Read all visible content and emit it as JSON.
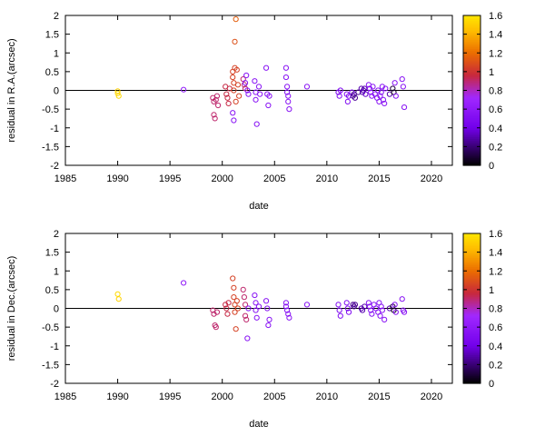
{
  "chart_data": [
    {
      "type": "scatter",
      "title": "",
      "xlabel": "date",
      "ylabel": "residual in R.A.(arcsec)",
      "xlim": [
        1985,
        2022
      ],
      "ylim": [
        -2,
        2
      ],
      "xticks": [
        "1985",
        "1990",
        "1995",
        "2000",
        "2005",
        "2010",
        "2015",
        "2020"
      ],
      "yticks": [
        "2",
        "1.5",
        "1",
        "0.5",
        "0",
        "-0.5",
        "-1",
        "-1.5",
        "-2"
      ],
      "zero_line": true,
      "marker": "open-circle",
      "colorbar": {
        "palette": "black-purple-red-orange-yellow",
        "range": [
          0,
          1.6
        ],
        "ticks": [
          "1.6",
          "1.4",
          "1.2",
          "1",
          "0.8",
          "0.6",
          "0.4",
          "0.2",
          "0"
        ]
      },
      "points": [
        {
          "x": 1990.0,
          "y": -0.08,
          "c": 1.55
        },
        {
          "x": 1990.1,
          "y": -0.15,
          "c": 1.55
        },
        {
          "x": 1990.0,
          "y": -0.02,
          "c": 1.52
        },
        {
          "x": 1996.3,
          "y": 0.02,
          "c": 0.6
        },
        {
          "x": 1999.1,
          "y": -0.2,
          "c": 0.9
        },
        {
          "x": 1999.2,
          "y": -0.3,
          "c": 0.9
        },
        {
          "x": 1999.2,
          "y": -0.65,
          "c": 0.9
        },
        {
          "x": 1999.3,
          "y": -0.75,
          "c": 0.9
        },
        {
          "x": 1999.4,
          "y": -0.25,
          "c": 0.9
        },
        {
          "x": 1999.5,
          "y": -0.15,
          "c": 0.9
        },
        {
          "x": 1999.6,
          "y": -0.4,
          "c": 0.9
        },
        {
          "x": 2000.3,
          "y": 0.1,
          "c": 0.95
        },
        {
          "x": 2000.4,
          "y": -0.1,
          "c": 0.95
        },
        {
          "x": 2000.5,
          "y": -0.2,
          "c": 0.95
        },
        {
          "x": 2000.6,
          "y": -0.35,
          "c": 0.95
        },
        {
          "x": 2000.7,
          "y": 0.05,
          "c": 0.95
        },
        {
          "x": 2001.0,
          "y": 0.5,
          "c": 1.05
        },
        {
          "x": 2001.0,
          "y": 0.35,
          "c": 1.05
        },
        {
          "x": 2001.1,
          "y": 0.2,
          "c": 1.05
        },
        {
          "x": 2001.1,
          "y": 0.0,
          "c": 1.05
        },
        {
          "x": 2001.2,
          "y": 0.6,
          "c": 1.05
        },
        {
          "x": 2001.2,
          "y": 1.3,
          "c": 1.1
        },
        {
          "x": 2001.3,
          "y": 1.9,
          "c": 1.15
        },
        {
          "x": 2001.3,
          "y": -0.3,
          "c": 1.05
        },
        {
          "x": 2001.4,
          "y": 0.55,
          "c": 1.05
        },
        {
          "x": 2001.5,
          "y": 0.15,
          "c": 1.05
        },
        {
          "x": 2001.6,
          "y": -0.15,
          "c": 1.05
        },
        {
          "x": 2001.0,
          "y": -0.6,
          "c": 0.55
        },
        {
          "x": 2001.1,
          "y": -0.8,
          "c": 0.55
        },
        {
          "x": 2002.0,
          "y": 0.3,
          "c": 0.9
        },
        {
          "x": 2002.1,
          "y": 0.15,
          "c": 0.9
        },
        {
          "x": 2002.2,
          "y": 0.05,
          "c": 0.9
        },
        {
          "x": 2002.2,
          "y": 0.2,
          "c": 0.55
        },
        {
          "x": 2002.3,
          "y": 0.4,
          "c": 0.55
        },
        {
          "x": 2002.4,
          "y": 0.0,
          "c": 0.55
        },
        {
          "x": 2002.5,
          "y": -0.1,
          "c": 0.55
        },
        {
          "x": 2003.1,
          "y": 0.25,
          "c": 0.55
        },
        {
          "x": 2003.2,
          "y": -0.05,
          "c": 0.55
        },
        {
          "x": 2003.2,
          "y": -0.25,
          "c": 0.55
        },
        {
          "x": 2003.3,
          "y": -0.9,
          "c": 0.55
        },
        {
          "x": 2003.5,
          "y": 0.1,
          "c": 0.55
        },
        {
          "x": 2003.6,
          "y": -0.1,
          "c": 0.55
        },
        {
          "x": 2004.2,
          "y": 0.6,
          "c": 0.55
        },
        {
          "x": 2004.3,
          "y": -0.1,
          "c": 0.55
        },
        {
          "x": 2004.4,
          "y": -0.4,
          "c": 0.55
        },
        {
          "x": 2004.5,
          "y": -0.15,
          "c": 0.55
        },
        {
          "x": 2006.1,
          "y": 0.6,
          "c": 0.55
        },
        {
          "x": 2006.1,
          "y": 0.35,
          "c": 0.55
        },
        {
          "x": 2006.2,
          "y": 0.1,
          "c": 0.55
        },
        {
          "x": 2006.2,
          "y": -0.05,
          "c": 0.55
        },
        {
          "x": 2006.3,
          "y": -0.15,
          "c": 0.55
        },
        {
          "x": 2006.3,
          "y": -0.3,
          "c": 0.55
        },
        {
          "x": 2006.4,
          "y": -0.5,
          "c": 0.55
        },
        {
          "x": 2008.1,
          "y": 0.1,
          "c": 0.55
        },
        {
          "x": 2011.1,
          "y": -0.05,
          "c": 0.5
        },
        {
          "x": 2011.2,
          "y": -0.15,
          "c": 0.5
        },
        {
          "x": 2011.3,
          "y": 0.0,
          "c": 0.5
        },
        {
          "x": 2011.9,
          "y": -0.1,
          "c": 0.5
        },
        {
          "x": 2012.0,
          "y": -0.3,
          "c": 0.5
        },
        {
          "x": 2012.1,
          "y": -0.15,
          "c": 0.5
        },
        {
          "x": 2012.4,
          "y": -0.05,
          "c": 0.5
        },
        {
          "x": 2012.5,
          "y": -0.15,
          "c": 0.25
        },
        {
          "x": 2012.6,
          "y": -0.1,
          "c": 0.25
        },
        {
          "x": 2012.7,
          "y": -0.2,
          "c": 0.25
        },
        {
          "x": 2013.0,
          "y": -0.05,
          "c": 0.25
        },
        {
          "x": 2013.3,
          "y": 0.05,
          "c": 0.3
        },
        {
          "x": 2013.4,
          "y": -0.05,
          "c": 0.3
        },
        {
          "x": 2013.5,
          "y": 0.0,
          "c": 0.3
        },
        {
          "x": 2013.6,
          "y": 0.05,
          "c": 0.3
        },
        {
          "x": 2013.7,
          "y": -0.1,
          "c": 0.35
        },
        {
          "x": 2014.0,
          "y": 0.15,
          "c": 0.55
        },
        {
          "x": 2014.1,
          "y": 0.05,
          "c": 0.55
        },
        {
          "x": 2014.2,
          "y": -0.05,
          "c": 0.55
        },
        {
          "x": 2014.3,
          "y": -0.15,
          "c": 0.55
        },
        {
          "x": 2014.4,
          "y": 0.1,
          "c": 0.55
        },
        {
          "x": 2014.6,
          "y": -0.1,
          "c": 0.55
        },
        {
          "x": 2014.8,
          "y": -0.2,
          "c": 0.55
        },
        {
          "x": 2014.9,
          "y": 0.0,
          "c": 0.55
        },
        {
          "x": 2015.0,
          "y": -0.3,
          "c": 0.55
        },
        {
          "x": 2015.1,
          "y": -0.15,
          "c": 0.55
        },
        {
          "x": 2015.2,
          "y": -0.05,
          "c": 0.55
        },
        {
          "x": 2015.3,
          "y": 0.1,
          "c": 0.55
        },
        {
          "x": 2015.4,
          "y": -0.25,
          "c": 0.55
        },
        {
          "x": 2015.5,
          "y": -0.35,
          "c": 0.55
        },
        {
          "x": 2015.6,
          "y": 0.05,
          "c": 0.55
        },
        {
          "x": 2016.0,
          "y": -0.1,
          "c": 0.3
        },
        {
          "x": 2016.3,
          "y": 0.05,
          "c": 0.1
        },
        {
          "x": 2016.4,
          "y": -0.05,
          "c": 0.05
        },
        {
          "x": 2016.5,
          "y": 0.2,
          "c": 0.55
        },
        {
          "x": 2016.6,
          "y": -0.15,
          "c": 0.55
        },
        {
          "x": 2017.2,
          "y": 0.3,
          "c": 0.55
        },
        {
          "x": 2017.3,
          "y": 0.1,
          "c": 0.55
        },
        {
          "x": 2017.4,
          "y": -0.45,
          "c": 0.55
        }
      ]
    },
    {
      "type": "scatter",
      "title": "",
      "xlabel": "date",
      "ylabel": "residual in Dec.(arcsec)",
      "xlim": [
        1985,
        2022
      ],
      "ylim": [
        -2,
        2
      ],
      "xticks": [
        "1985",
        "1990",
        "1995",
        "2000",
        "2005",
        "2010",
        "2015",
        "2020"
      ],
      "yticks": [
        "2",
        "1.5",
        "1",
        "0.5",
        "0",
        "-0.5",
        "-1",
        "-1.5",
        "-2"
      ],
      "zero_line": true,
      "marker": "open-circle",
      "colorbar": {
        "palette": "black-purple-red-orange-yellow",
        "range": [
          0,
          1.6
        ],
        "ticks": [
          "1.6",
          "1.4",
          "1.2",
          "1",
          "0.8",
          "0.6",
          "0.4",
          "0.2",
          "0"
        ]
      },
      "points": [
        {
          "x": 1990.0,
          "y": 0.38,
          "c": 1.55
        },
        {
          "x": 1990.1,
          "y": 0.25,
          "c": 1.52
        },
        {
          "x": 1996.3,
          "y": 0.68,
          "c": 0.6
        },
        {
          "x": 1999.1,
          "y": -0.05,
          "c": 0.9
        },
        {
          "x": 1999.2,
          "y": -0.15,
          "c": 0.9
        },
        {
          "x": 1999.3,
          "y": -0.45,
          "c": 0.9
        },
        {
          "x": 1999.4,
          "y": -0.5,
          "c": 0.9
        },
        {
          "x": 1999.5,
          "y": -0.1,
          "c": 0.9
        },
        {
          "x": 2000.3,
          "y": 0.1,
          "c": 0.95
        },
        {
          "x": 2000.4,
          "y": 0.0,
          "c": 0.95
        },
        {
          "x": 2000.5,
          "y": -0.15,
          "c": 0.95
        },
        {
          "x": 2000.6,
          "y": 0.15,
          "c": 0.95
        },
        {
          "x": 2001.0,
          "y": 0.8,
          "c": 1.05
        },
        {
          "x": 2001.1,
          "y": 0.55,
          "c": 1.05
        },
        {
          "x": 2001.1,
          "y": 0.3,
          "c": 1.05
        },
        {
          "x": 2001.2,
          "y": 0.1,
          "c": 1.05
        },
        {
          "x": 2001.2,
          "y": -0.1,
          "c": 1.05
        },
        {
          "x": 2001.3,
          "y": -0.55,
          "c": 1.05
        },
        {
          "x": 2001.4,
          "y": 0.2,
          "c": 1.05
        },
        {
          "x": 2001.5,
          "y": 0.0,
          "c": 1.05
        },
        {
          "x": 2002.0,
          "y": 0.5,
          "c": 0.9
        },
        {
          "x": 2002.1,
          "y": 0.3,
          "c": 0.9
        },
        {
          "x": 2002.2,
          "y": 0.1,
          "c": 0.9
        },
        {
          "x": 2002.2,
          "y": -0.2,
          "c": 0.9
        },
        {
          "x": 2002.3,
          "y": -0.3,
          "c": 0.9
        },
        {
          "x": 2002.4,
          "y": -0.8,
          "c": 0.55
        },
        {
          "x": 2002.5,
          "y": 0.0,
          "c": 0.55
        },
        {
          "x": 2003.1,
          "y": 0.35,
          "c": 0.55
        },
        {
          "x": 2003.2,
          "y": 0.15,
          "c": 0.55
        },
        {
          "x": 2003.2,
          "y": -0.05,
          "c": 0.55
        },
        {
          "x": 2003.3,
          "y": -0.25,
          "c": 0.55
        },
        {
          "x": 2003.5,
          "y": 0.05,
          "c": 0.55
        },
        {
          "x": 2004.2,
          "y": 0.2,
          "c": 0.55
        },
        {
          "x": 2004.3,
          "y": 0.0,
          "c": 0.55
        },
        {
          "x": 2004.4,
          "y": -0.45,
          "c": 0.55
        },
        {
          "x": 2004.5,
          "y": -0.3,
          "c": 0.55
        },
        {
          "x": 2006.1,
          "y": 0.15,
          "c": 0.55
        },
        {
          "x": 2006.1,
          "y": 0.05,
          "c": 0.55
        },
        {
          "x": 2006.2,
          "y": -0.05,
          "c": 0.55
        },
        {
          "x": 2006.3,
          "y": -0.15,
          "c": 0.55
        },
        {
          "x": 2006.4,
          "y": -0.25,
          "c": 0.55
        },
        {
          "x": 2008.1,
          "y": 0.1,
          "c": 0.55
        },
        {
          "x": 2011.1,
          "y": 0.1,
          "c": 0.5
        },
        {
          "x": 2011.2,
          "y": -0.05,
          "c": 0.5
        },
        {
          "x": 2011.3,
          "y": -0.2,
          "c": 0.5
        },
        {
          "x": 2011.9,
          "y": 0.15,
          "c": 0.5
        },
        {
          "x": 2012.0,
          "y": 0.0,
          "c": 0.5
        },
        {
          "x": 2012.1,
          "y": -0.1,
          "c": 0.5
        },
        {
          "x": 2012.5,
          "y": 0.1,
          "c": 0.25
        },
        {
          "x": 2012.6,
          "y": 0.05,
          "c": 0.25
        },
        {
          "x": 2012.7,
          "y": 0.1,
          "c": 0.25
        },
        {
          "x": 2013.3,
          "y": 0.0,
          "c": 0.3
        },
        {
          "x": 2013.4,
          "y": -0.05,
          "c": 0.3
        },
        {
          "x": 2013.6,
          "y": 0.05,
          "c": 0.3
        },
        {
          "x": 2014.0,
          "y": 0.15,
          "c": 0.55
        },
        {
          "x": 2014.1,
          "y": 0.05,
          "c": 0.55
        },
        {
          "x": 2014.2,
          "y": -0.05,
          "c": 0.55
        },
        {
          "x": 2014.3,
          "y": -0.15,
          "c": 0.55
        },
        {
          "x": 2014.5,
          "y": 0.1,
          "c": 0.55
        },
        {
          "x": 2014.7,
          "y": 0.0,
          "c": 0.55
        },
        {
          "x": 2014.9,
          "y": -0.1,
          "c": 0.55
        },
        {
          "x": 2015.0,
          "y": 0.15,
          "c": 0.55
        },
        {
          "x": 2015.1,
          "y": -0.2,
          "c": 0.55
        },
        {
          "x": 2015.2,
          "y": 0.05,
          "c": 0.55
        },
        {
          "x": 2015.3,
          "y": -0.05,
          "c": 0.55
        },
        {
          "x": 2015.5,
          "y": -0.3,
          "c": 0.55
        },
        {
          "x": 2016.0,
          "y": 0.0,
          "c": 0.3
        },
        {
          "x": 2016.3,
          "y": 0.05,
          "c": 0.1
        },
        {
          "x": 2016.4,
          "y": -0.05,
          "c": 0.05
        },
        {
          "x": 2016.5,
          "y": 0.1,
          "c": 0.55
        },
        {
          "x": 2016.6,
          "y": -0.1,
          "c": 0.55
        },
        {
          "x": 2017.2,
          "y": 0.25,
          "c": 0.55
        },
        {
          "x": 2017.3,
          "y": -0.05,
          "c": 0.55
        },
        {
          "x": 2017.4,
          "y": -0.1,
          "c": 0.55
        }
      ]
    }
  ]
}
